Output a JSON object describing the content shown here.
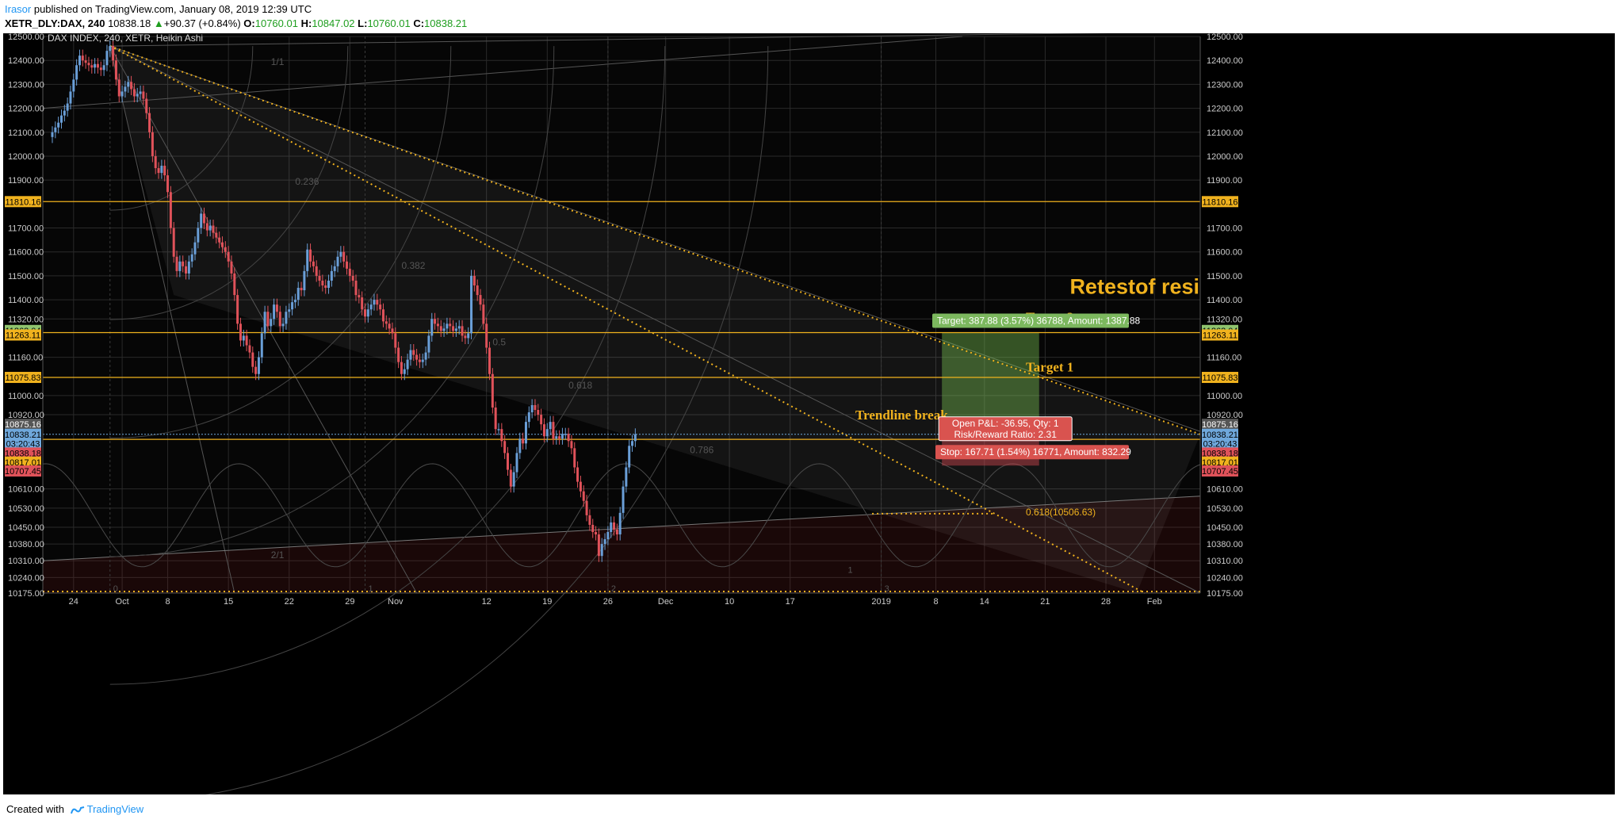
{
  "header": {
    "author": "Irasor",
    "published_text": " published on TradingView.com, January 08, 2019 12:39 UTC"
  },
  "ohlc": {
    "symbol": "XETR_DLY:DAX, 240",
    "price": "10838.18",
    "change": "+90.37 (+0.84%)",
    "o_label": "O:",
    "o": "10760.01",
    "h_label": "H:",
    "h": "10847.02",
    "l_label": "L:",
    "l": "10760.01",
    "c_label": "C:",
    "c": "10838.21"
  },
  "footer": {
    "created_with": "Created with",
    "brand": "TradingView"
  },
  "colors": {
    "up": "#6a9fd8",
    "down": "#e0525a",
    "orange": "#f0b21e",
    "grid": "#2a2a2a",
    "target_box": "#5b8a3a",
    "stop_box": "#d24f56"
  },
  "chart_data": {
    "type": "candlestick",
    "title": "DAX INDEX, 240, XETR, Heikin Ashi",
    "ylim": [
      10175,
      12500
    ],
    "y_ticks": [
      12500,
      12400,
      12300,
      12200,
      12100,
      12000,
      11900,
      11700,
      11600,
      11500,
      11400,
      11320,
      11160,
      11000,
      10920,
      10610,
      10530,
      10450,
      10380,
      10310,
      10240,
      10175
    ],
    "x_ticks": [
      {
        "label": "24",
        "idx": 7
      },
      {
        "label": "Oct",
        "idx": 23
      },
      {
        "label": "8",
        "idx": 38
      },
      {
        "label": "15",
        "idx": 58
      },
      {
        "label": "22",
        "idx": 78
      },
      {
        "label": "29",
        "idx": 98
      },
      {
        "label": "Nov",
        "idx": 113
      },
      {
        "label": "12",
        "idx": 143
      },
      {
        "label": "19",
        "idx": 163
      },
      {
        "label": "26",
        "idx": 183
      },
      {
        "label": "Dec",
        "idx": 202
      },
      {
        "label": "10",
        "idx": 223
      },
      {
        "label": "17",
        "idx": 243
      },
      {
        "label": "2019",
        "idx": 273
      },
      {
        "label": "8",
        "idx": 291
      },
      {
        "label": "14",
        "idx": 307
      },
      {
        "label": "21",
        "idx": 327
      },
      {
        "label": "28",
        "idx": 347
      },
      {
        "label": "Feb",
        "idx": 363
      }
    ],
    "n_slots": 380,
    "closes": [
      12100,
      12120,
      12140,
      12170,
      12190,
      12220,
      12270,
      12320,
      12380,
      12420,
      12400,
      12390,
      12380,
      12370,
      12385,
      12370,
      12360,
      12380,
      12440,
      12460,
      12400,
      12320,
      12250,
      12270,
      12290,
      12310,
      12280,
      12250,
      12260,
      12270,
      12240,
      12180,
      12100,
      12000,
      11950,
      11930,
      11960,
      11920,
      11850,
      11700,
      11580,
      11520,
      11560,
      11540,
      11510,
      11560,
      11590,
      11640,
      11700,
      11760,
      11720,
      11690,
      11710,
      11680,
      11660,
      11640,
      11620,
      11600,
      11560,
      11510,
      11420,
      11300,
      11230,
      11250,
      11210,
      11180,
      11120,
      11090,
      11160,
      11260,
      11350,
      11290,
      11320,
      11380,
      11350,
      11290,
      11300,
      11350,
      11360,
      11390,
      11400,
      11450,
      11440,
      11520,
      11610,
      11560,
      11540,
      11500,
      11480,
      11460,
      11450,
      11480,
      11520,
      11540,
      11580,
      11600,
      11560,
      11530,
      11500,
      11480,
      11420,
      11410,
      11360,
      11330,
      11360,
      11380,
      11400,
      11380,
      11360,
      11310,
      11300,
      11280,
      11260,
      11200,
      11140,
      11090,
      11110,
      11150,
      11190,
      11170,
      11150,
      11140,
      11150,
      11180,
      11250,
      11320,
      11300,
      11290,
      11270,
      11280,
      11300,
      11290,
      11270,
      11280,
      11290,
      11250,
      11240,
      11260,
      11500,
      11460,
      11420,
      11380,
      11300,
      11200,
      11090,
      10950,
      10860,
      10860,
      10810,
      10760,
      10690,
      10620,
      10680,
      10760,
      10820,
      10800,
      10890,
      10930,
      10960,
      10940,
      10920,
      10880,
      10830,
      10860,
      10890,
      10820,
      10830,
      10820,
      10840,
      10840,
      10810,
      10780,
      10700,
      10640,
      10600,
      10560,
      10500,
      10460,
      10430,
      10420,
      10330,
      10380,
      10400,
      10430,
      10470,
      10440,
      10420,
      10510,
      10620,
      10700,
      10790,
      10810,
      10838
    ],
    "annotations": {
      "level_11810": {
        "price": 11810.16,
        "label": "11810.16"
      },
      "level_11263_04": {
        "label": "11263.04"
      },
      "level_11263_11": {
        "label": "11263.11"
      },
      "level_11075": {
        "price": 11075.83,
        "label": "11075.83"
      },
      "level_10875": {
        "label": "10875.16"
      },
      "level_10838_21": {
        "label": "10838.21"
      },
      "countdown": {
        "label": "03:20:43"
      },
      "level_10838_18": {
        "label": "10838.18"
      },
      "level_10817": {
        "price": 10817.01,
        "label": "10817.01"
      },
      "level_10707": {
        "label": "10707.45"
      },
      "fib_0618": {
        "label": "0.618(10506.63)"
      },
      "target_text": "Target: 387.88 (3.57%) 36788, Amount: 1387.88",
      "stop_text": "Stop: 167.71 (1.54%) 16771, Amount: 832.29",
      "pl_text_1": "Open P&L: -36.95, Qty: 1",
      "pl_text_2": "Risk/Reward Ratio: 2.31",
      "retest": "Retestof resistance",
      "target2": "Target 2",
      "target1": "Target 1",
      "trend_break": "Trendline break",
      "fan_labels": [
        "1/1",
        "2/1",
        "0.236",
        "0.382",
        "0.5",
        "0.618",
        "0.786"
      ],
      "cycle_labels": [
        "0",
        "1",
        "2",
        "1",
        "3"
      ]
    }
  }
}
